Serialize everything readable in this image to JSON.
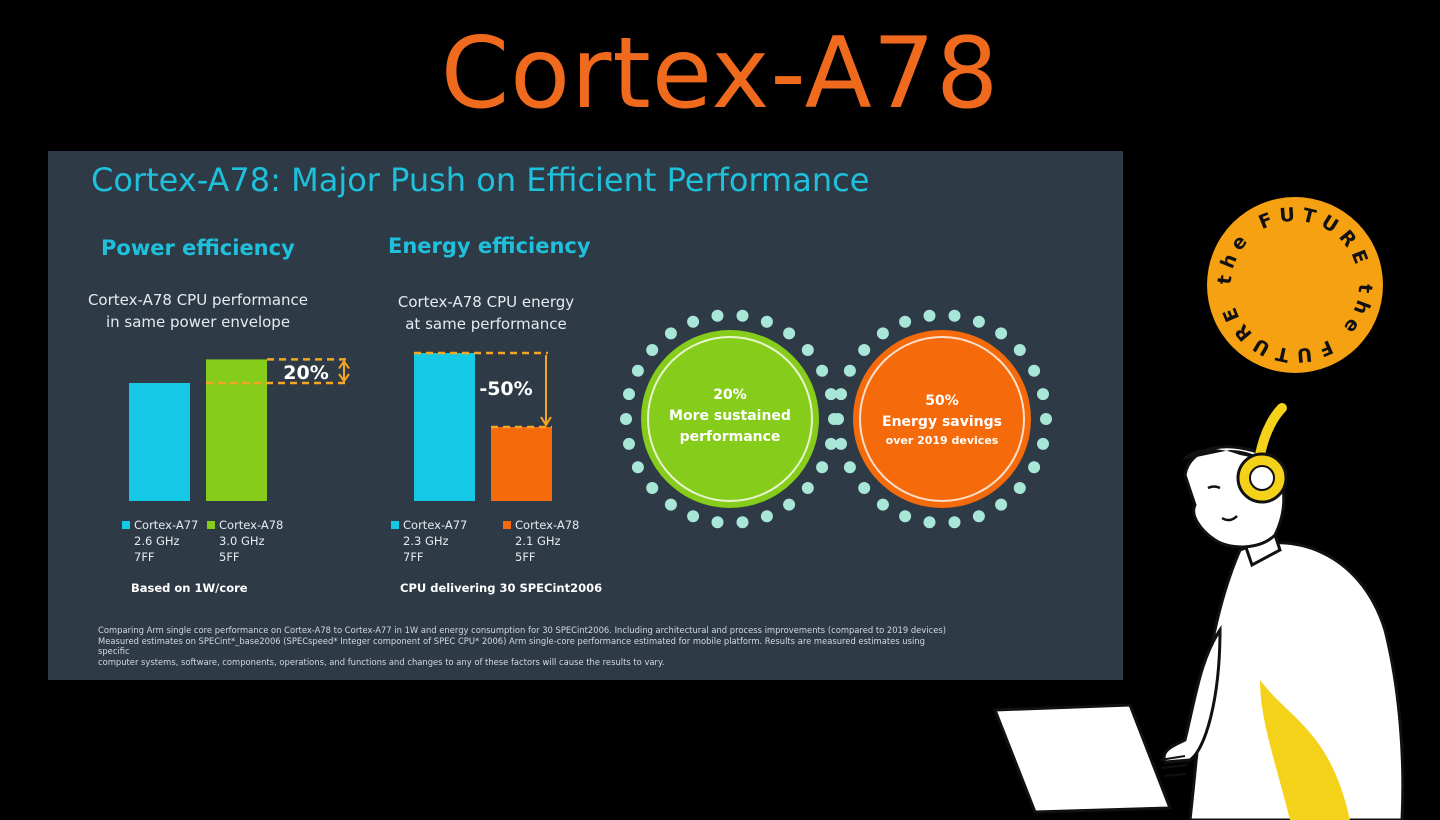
{
  "page_title": "Cortex-A78",
  "slide": {
    "title": "Cortex-A78: Major Push on Efficient Performance",
    "footnote_lines": [
      "Comparing Arm single core performance on Cortex-A78 to Cortex-A77 in 1W and energy consumption for 30 SPECint2006. Including architectural and process improvements (compared to 2019 devices)",
      "Measured estimates on SPECint*_base2006 (SPECspeed* Integer component of SPEC CPU* 2006) Arm single-core performance estimated for mobile platform. Results are measured estimates using specific",
      "computer systems, software, components, operations, and functions and changes to any of these factors will cause the results to vary."
    ]
  },
  "chart_data": [
    {
      "type": "bar",
      "title": "Power efficiency",
      "subtitle": [
        "Cortex-A78 CPU performance",
        "in same power envelope"
      ],
      "categories": [
        "Cortex-A77",
        "Cortex-A78"
      ],
      "values": [
        100,
        120
      ],
      "colors": [
        "#14c8e6",
        "#86cc1a"
      ],
      "legend": [
        {
          "name": "Cortex-A77",
          "details": [
            "2.6 GHz",
            "7FF"
          ]
        },
        {
          "name": "Cortex-A78",
          "details": [
            "3.0 GHz",
            "5FF"
          ]
        }
      ],
      "annotation": "20%",
      "basis": "Based on 1W/core"
    },
    {
      "type": "bar",
      "title": "Energy efficiency",
      "subtitle": [
        "Cortex-A78 CPU energy",
        "at same performance"
      ],
      "categories": [
        "Cortex-A77",
        "Cortex-A78"
      ],
      "values": [
        100,
        50
      ],
      "colors": [
        "#14c8e6",
        "#f56a0a"
      ],
      "legend": [
        {
          "name": "Cortex-A77",
          "details": [
            "2.3 GHz",
            "7FF"
          ]
        },
        {
          "name": "Cortex-A78",
          "details": [
            "2.1 GHz",
            "5FF"
          ]
        }
      ],
      "annotation": "-50%",
      "basis": "CPU delivering 30 SPECint2006"
    }
  ],
  "highlights": [
    {
      "value": "20%",
      "lines": [
        "More sustained",
        "performance"
      ],
      "sub": "",
      "color": "#86cc1a"
    },
    {
      "value": "50%",
      "lines": [
        "Energy savings"
      ],
      "sub": "over 2019 devices",
      "color": "#f56a0a"
    }
  ],
  "badge": {
    "text": "the FUTURE the FUTURE",
    "color": "#f5a111"
  },
  "colors": {
    "accent_title": "#f06a1e",
    "slide_bg": "#2e3a45",
    "heading": "#1fc0dc",
    "guide": "#f5a623",
    "dots": "#a8e6d8"
  }
}
